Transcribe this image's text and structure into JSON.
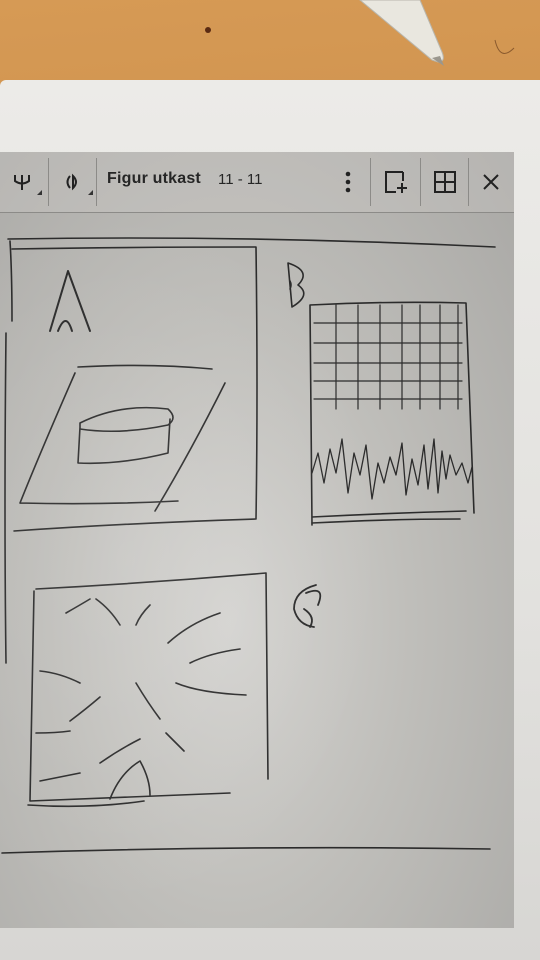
{
  "app": {
    "title": "Figur utkast",
    "page_indicator": "11 - 11"
  },
  "toolbar": {
    "tools": [
      {
        "icon": "pen-tool-icon"
      },
      {
        "icon": "eraser-tool-icon"
      }
    ],
    "actions": [
      {
        "icon": "more-options-icon"
      },
      {
        "icon": "add-page-icon"
      },
      {
        "icon": "grid-layout-icon"
      },
      {
        "icon": "close-icon"
      }
    ]
  },
  "sketch": {
    "panel_labels": [
      "A",
      "B",
      "C"
    ]
  }
}
